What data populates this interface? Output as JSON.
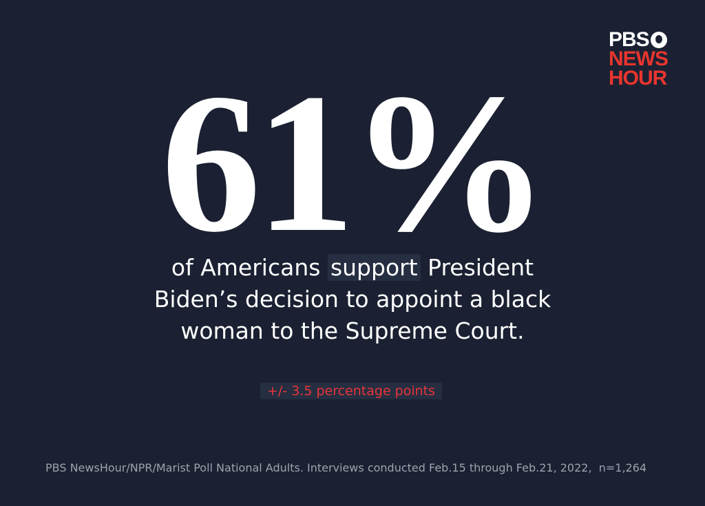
{
  "logo": {
    "line1": "PBS",
    "line2": "NEWS",
    "line3": "HOUR"
  },
  "headline": {
    "stat": "61%",
    "line1": {
      "before": "of Americans",
      "highlight": "support",
      "after": "President"
    },
    "line2": "Biden’s decision to appoint a black",
    "line3": "woman to the Supreme Court."
  },
  "margin_of_error": "+/- 3.5 percentage points",
  "source": "PBS NewsHour/NPR/Marist Poll National Adults. Interviews conducted Feb.15 through Feb.21, 2022,  n=1,264"
}
